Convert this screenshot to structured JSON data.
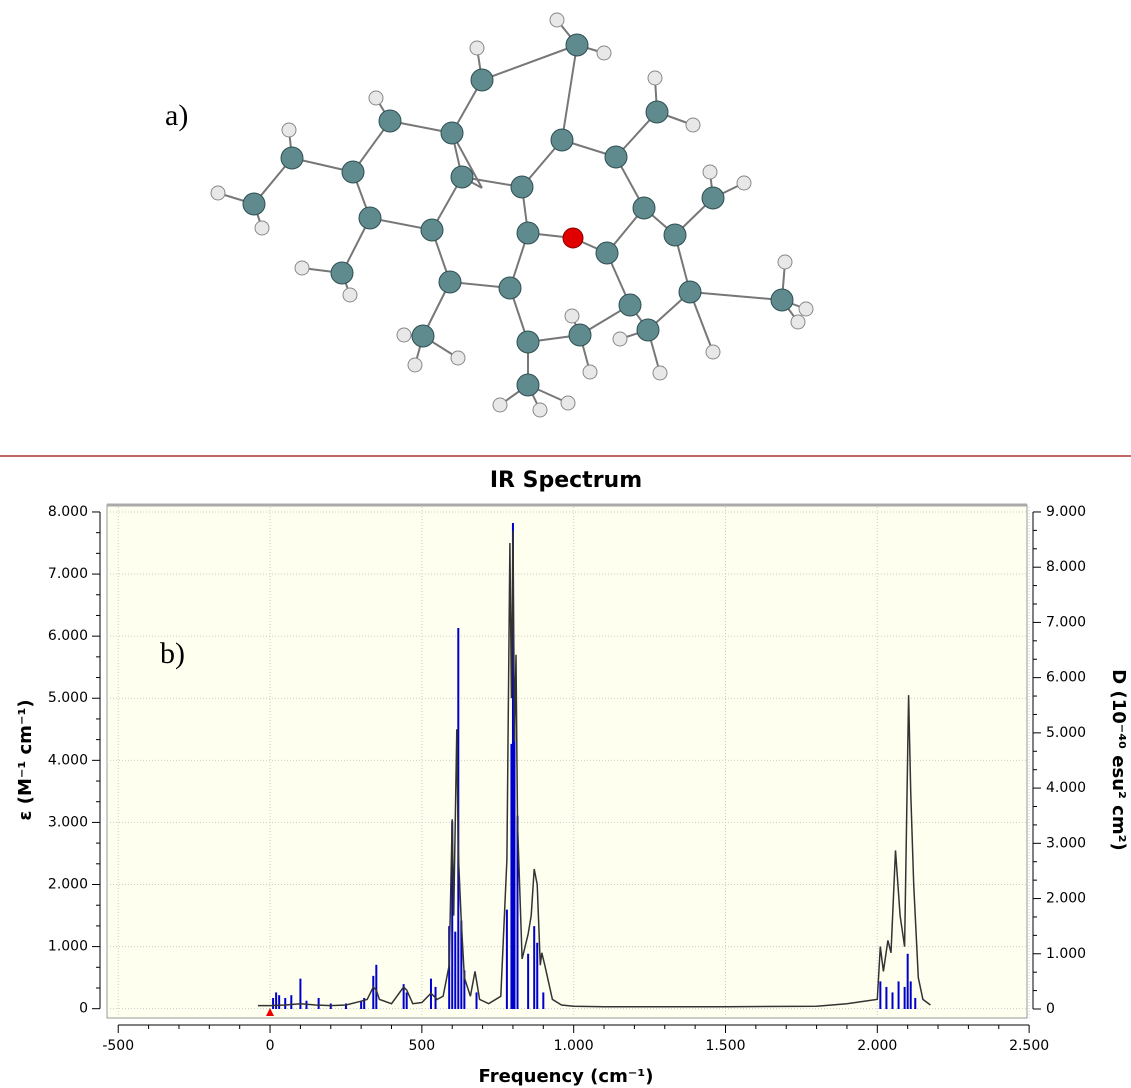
{
  "annotations": {
    "a": "a)"
  },
  "chart_data": {
    "type": "line",
    "title": "IR Spectrum",
    "annotation": "b)",
    "x_label": "Frequency (cm⁻¹)",
    "y_label": "ε (M⁻¹ cm⁻¹)",
    "y2_label": "D (10⁻⁴⁰ esu² cm²)",
    "xlim": [
      -537,
      2493
    ],
    "ylim": [
      -150,
      8080
    ],
    "y2lim": [
      -163,
      9090
    ],
    "xticks": [
      -500,
      0,
      500,
      {
        "value": 1000,
        "label": "1.000"
      },
      {
        "value": 1500,
        "label": "1.500"
      },
      {
        "value": 2000,
        "label": "2.000"
      },
      {
        "value": 2500,
        "label": "2.500"
      }
    ],
    "yticks": [
      0,
      {
        "value": 1000,
        "label": "1.000"
      },
      {
        "value": 2000,
        "label": "2.000"
      },
      {
        "value": 3000,
        "label": "3.000"
      },
      {
        "value": 4000,
        "label": "4.000"
      },
      {
        "value": 5000,
        "label": "5.000"
      },
      {
        "value": 6000,
        "label": "6.000"
      },
      {
        "value": 7000,
        "label": "7.000"
      },
      {
        "value": 8000,
        "label": "8.000"
      }
    ],
    "y2ticks": [
      0,
      {
        "value": 1000,
        "label": "1.000"
      },
      {
        "value": 2000,
        "label": "2.000"
      },
      {
        "value": 3000,
        "label": "3.000"
      },
      {
        "value": 4000,
        "label": "4.000"
      },
      {
        "value": 5000,
        "label": "5.000"
      },
      {
        "value": 6000,
        "label": "6.000"
      },
      {
        "value": 7000,
        "label": "7.000"
      },
      {
        "value": 8000,
        "label": "8.000"
      },
      {
        "value": 9000,
        "label": "9.000"
      }
    ],
    "grid": true,
    "series": [
      {
        "color": "#0000cc",
        "axis": "y2",
        "style": "stick",
        "x": [
          10,
          20,
          30,
          50,
          70,
          100,
          120,
          160,
          200,
          250,
          300,
          310,
          340,
          350,
          440,
          450,
          530,
          545,
          590,
          600,
          610,
          620,
          630,
          640,
          680,
          780,
          795,
          800,
          805,
          815,
          850,
          870,
          880,
          900,
          2010,
          2030,
          2050,
          2070,
          2090,
          2100,
          2110,
          2125
        ],
        "values": [
          200,
          300,
          250,
          200,
          250,
          550,
          150,
          200,
          100,
          100,
          150,
          200,
          600,
          800,
          450,
          300,
          550,
          400,
          1500,
          3400,
          1400,
          6900,
          1600,
          700,
          300,
          1800,
          4800,
          8800,
          6000,
          3500,
          1000,
          1500,
          1200,
          300,
          500,
          400,
          300,
          500,
          400,
          1000,
          500,
          200
        ]
      },
      {
        "color": "#333333",
        "style": "line",
        "x": [
          -40,
          0,
          50,
          100,
          150,
          200,
          250,
          300,
          320,
          340,
          350,
          360,
          400,
          440,
          450,
          470,
          500,
          530,
          550,
          570,
          590,
          600,
          605,
          615,
          620,
          630,
          640,
          660,
          675,
          690,
          720,
          760,
          780,
          790,
          795,
          800,
          805,
          810,
          815,
          830,
          850,
          860,
          870,
          880,
          890,
          895,
          905,
          930,
          960,
          1000,
          1100,
          1500,
          1800,
          1900,
          2000,
          2010,
          2020,
          2035,
          2045,
          2060,
          2075,
          2090,
          2103,
          2110,
          2120,
          2135,
          2150,
          2175
        ],
        "values": [
          50,
          50,
          60,
          80,
          60,
          50,
          60,
          120,
          150,
          350,
          300,
          150,
          80,
          350,
          300,
          80,
          100,
          250,
          150,
          200,
          700,
          3050,
          1500,
          4500,
          2500,
          1400,
          500,
          200,
          600,
          150,
          80,
          200,
          2400,
          7500,
          5000,
          7700,
          4300,
          5700,
          3000,
          800,
          1200,
          1500,
          2250,
          2000,
          700,
          900,
          700,
          150,
          60,
          40,
          30,
          30,
          40,
          80,
          150,
          1000,
          600,
          1100,
          900,
          2550,
          1500,
          1000,
          5050,
          3500,
          2000,
          500,
          150,
          60
        ]
      }
    ]
  }
}
